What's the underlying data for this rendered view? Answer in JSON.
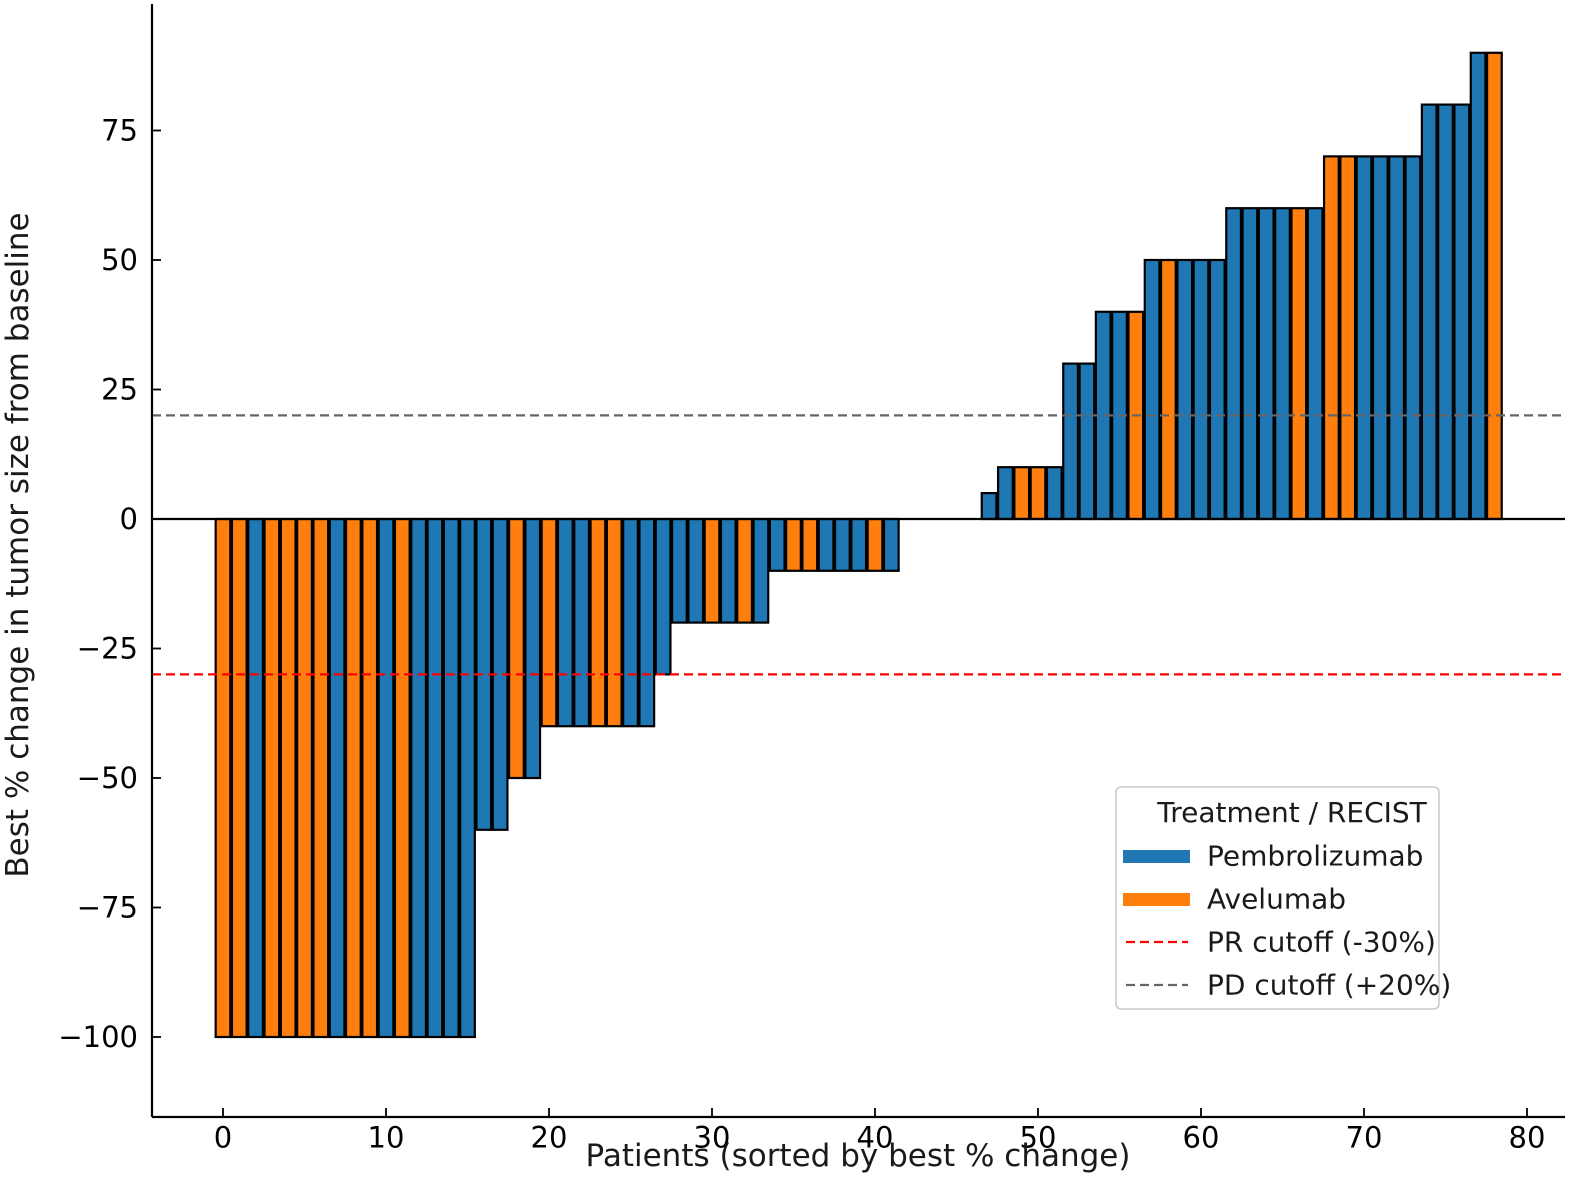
{
  "chart_data": {
    "type": "bar",
    "title": "",
    "xlabel": "Patients (sorted by best % change)",
    "ylabel": "Best % change in tumor size from baseline",
    "xlim": [
      -4.3,
      82.3
    ],
    "ylim": [
      -110,
      100
    ],
    "x_ticks": [
      0,
      10,
      20,
      30,
      40,
      50,
      60,
      70,
      80
    ],
    "y_ticks": [
      -100,
      -75,
      -50,
      -25,
      0,
      25,
      50,
      75
    ],
    "y_tick_labels": [
      "−100",
      "−75",
      "−50",
      "−25",
      "0",
      "25",
      "50",
      "75"
    ],
    "colors": {
      "Pembrolizumab": "#1f77b4",
      "Avelumab": "#ff7f0e",
      "pr_line": "#ff0000",
      "pd_line": "#666666",
      "bar_edge": "#000000"
    },
    "legend": {
      "title": "Treatment / RECIST",
      "position": "lower-right",
      "entries": [
        {
          "label": "Pembrolizumab",
          "kind": "bar",
          "color": "#1f77b4"
        },
        {
          "label": "Avelumab",
          "kind": "bar",
          "color": "#ff7f0e"
        },
        {
          "label": "PR cutoff (-30%)",
          "kind": "dashed",
          "color": "#ff0000"
        },
        {
          "label": "PD cutoff (+20%)",
          "kind": "dashed",
          "color": "#666666"
        }
      ]
    },
    "reference_lines": [
      {
        "name": "PR cutoff (-30%)",
        "y": -30,
        "color": "#ff0000",
        "style": "dashed"
      },
      {
        "name": "PD cutoff (+20%)",
        "y": 20,
        "color": "#666666",
        "style": "dashed"
      },
      {
        "name": "baseline",
        "y": 0,
        "color": "#000000",
        "style": "solid"
      }
    ],
    "bars": [
      {
        "x": 0,
        "value": -100,
        "treatment": "Avelumab"
      },
      {
        "x": 1,
        "value": -100,
        "treatment": "Avelumab"
      },
      {
        "x": 2,
        "value": -100,
        "treatment": "Pembrolizumab"
      },
      {
        "x": 3,
        "value": -100,
        "treatment": "Avelumab"
      },
      {
        "x": 4,
        "value": -100,
        "treatment": "Avelumab"
      },
      {
        "x": 5,
        "value": -100,
        "treatment": "Avelumab"
      },
      {
        "x": 6,
        "value": -100,
        "treatment": "Avelumab"
      },
      {
        "x": 7,
        "value": -100,
        "treatment": "Pembrolizumab"
      },
      {
        "x": 8,
        "value": -100,
        "treatment": "Avelumab"
      },
      {
        "x": 9,
        "value": -100,
        "treatment": "Avelumab"
      },
      {
        "x": 10,
        "value": -100,
        "treatment": "Pembrolizumab"
      },
      {
        "x": 11,
        "value": -100,
        "treatment": "Avelumab"
      },
      {
        "x": 12,
        "value": -100,
        "treatment": "Pembrolizumab"
      },
      {
        "x": 13,
        "value": -100,
        "treatment": "Pembrolizumab"
      },
      {
        "x": 14,
        "value": -100,
        "treatment": "Pembrolizumab"
      },
      {
        "x": 15,
        "value": -100,
        "treatment": "Pembrolizumab"
      },
      {
        "x": 16,
        "value": -60,
        "treatment": "Pembrolizumab"
      },
      {
        "x": 17,
        "value": -60,
        "treatment": "Pembrolizumab"
      },
      {
        "x": 18,
        "value": -50,
        "treatment": "Avelumab"
      },
      {
        "x": 19,
        "value": -50,
        "treatment": "Pembrolizumab"
      },
      {
        "x": 20,
        "value": -40,
        "treatment": "Avelumab"
      },
      {
        "x": 21,
        "value": -40,
        "treatment": "Pembrolizumab"
      },
      {
        "x": 22,
        "value": -40,
        "treatment": "Pembrolizumab"
      },
      {
        "x": 23,
        "value": -40,
        "treatment": "Avelumab"
      },
      {
        "x": 24,
        "value": -40,
        "treatment": "Avelumab"
      },
      {
        "x": 25,
        "value": -40,
        "treatment": "Pembrolizumab"
      },
      {
        "x": 26,
        "value": -40,
        "treatment": "Pembrolizumab"
      },
      {
        "x": 27,
        "value": -30,
        "treatment": "Pembrolizumab"
      },
      {
        "x": 28,
        "value": -20,
        "treatment": "Pembrolizumab"
      },
      {
        "x": 29,
        "value": -20,
        "treatment": "Pembrolizumab"
      },
      {
        "x": 30,
        "value": -20,
        "treatment": "Avelumab"
      },
      {
        "x": 31,
        "value": -20,
        "treatment": "Pembrolizumab"
      },
      {
        "x": 32,
        "value": -20,
        "treatment": "Avelumab"
      },
      {
        "x": 33,
        "value": -20,
        "treatment": "Pembrolizumab"
      },
      {
        "x": 34,
        "value": -10,
        "treatment": "Pembrolizumab"
      },
      {
        "x": 35,
        "value": -10,
        "treatment": "Avelumab"
      },
      {
        "x": 36,
        "value": -10,
        "treatment": "Avelumab"
      },
      {
        "x": 37,
        "value": -10,
        "treatment": "Pembrolizumab"
      },
      {
        "x": 38,
        "value": -10,
        "treatment": "Pembrolizumab"
      },
      {
        "x": 39,
        "value": -10,
        "treatment": "Pembrolizumab"
      },
      {
        "x": 40,
        "value": -10,
        "treatment": "Avelumab"
      },
      {
        "x": 41,
        "value": -10,
        "treatment": "Pembrolizumab"
      },
      {
        "x": 42,
        "value": 0,
        "treatment": "Pembrolizumab"
      },
      {
        "x": 43,
        "value": 0,
        "treatment": "Pembrolizumab"
      },
      {
        "x": 44,
        "value": 0,
        "treatment": "Pembrolizumab"
      },
      {
        "x": 45,
        "value": 0,
        "treatment": "Pembrolizumab"
      },
      {
        "x": 46,
        "value": 0,
        "treatment": "Pembrolizumab"
      },
      {
        "x": 47,
        "value": 5,
        "treatment": "Pembrolizumab"
      },
      {
        "x": 48,
        "value": 10,
        "treatment": "Pembrolizumab"
      },
      {
        "x": 49,
        "value": 10,
        "treatment": "Avelumab"
      },
      {
        "x": 50,
        "value": 10,
        "treatment": "Avelumab"
      },
      {
        "x": 51,
        "value": 10,
        "treatment": "Pembrolizumab"
      },
      {
        "x": 52,
        "value": 30,
        "treatment": "Pembrolizumab"
      },
      {
        "x": 53,
        "value": 30,
        "treatment": "Pembrolizumab"
      },
      {
        "x": 54,
        "value": 40,
        "treatment": "Pembrolizumab"
      },
      {
        "x": 55,
        "value": 40,
        "treatment": "Pembrolizumab"
      },
      {
        "x": 56,
        "value": 40,
        "treatment": "Avelumab"
      },
      {
        "x": 57,
        "value": 50,
        "treatment": "Pembrolizumab"
      },
      {
        "x": 58,
        "value": 50,
        "treatment": "Avelumab"
      },
      {
        "x": 59,
        "value": 50,
        "treatment": "Pembrolizumab"
      },
      {
        "x": 60,
        "value": 50,
        "treatment": "Pembrolizumab"
      },
      {
        "x": 61,
        "value": 50,
        "treatment": "Pembrolizumab"
      },
      {
        "x": 62,
        "value": 60,
        "treatment": "Pembrolizumab"
      },
      {
        "x": 63,
        "value": 60,
        "treatment": "Pembrolizumab"
      },
      {
        "x": 64,
        "value": 60,
        "treatment": "Pembrolizumab"
      },
      {
        "x": 65,
        "value": 60,
        "treatment": "Pembrolizumab"
      },
      {
        "x": 66,
        "value": 60,
        "treatment": "Avelumab"
      },
      {
        "x": 67,
        "value": 60,
        "treatment": "Pembrolizumab"
      },
      {
        "x": 68,
        "value": 70,
        "treatment": "Avelumab"
      },
      {
        "x": 69,
        "value": 70,
        "treatment": "Avelumab"
      },
      {
        "x": 70,
        "value": 70,
        "treatment": "Pembrolizumab"
      },
      {
        "x": 71,
        "value": 70,
        "treatment": "Pembrolizumab"
      },
      {
        "x": 72,
        "value": 70,
        "treatment": "Pembrolizumab"
      },
      {
        "x": 73,
        "value": 70,
        "treatment": "Pembrolizumab"
      },
      {
        "x": 74,
        "value": 80,
        "treatment": "Pembrolizumab"
      },
      {
        "x": 75,
        "value": 80,
        "treatment": "Pembrolizumab"
      },
      {
        "x": 76,
        "value": 80,
        "treatment": "Pembrolizumab"
      },
      {
        "x": 77,
        "value": 90,
        "treatment": "Pembrolizumab"
      },
      {
        "x": 78,
        "value": 90,
        "treatment": "Avelumab"
      }
    ]
  }
}
